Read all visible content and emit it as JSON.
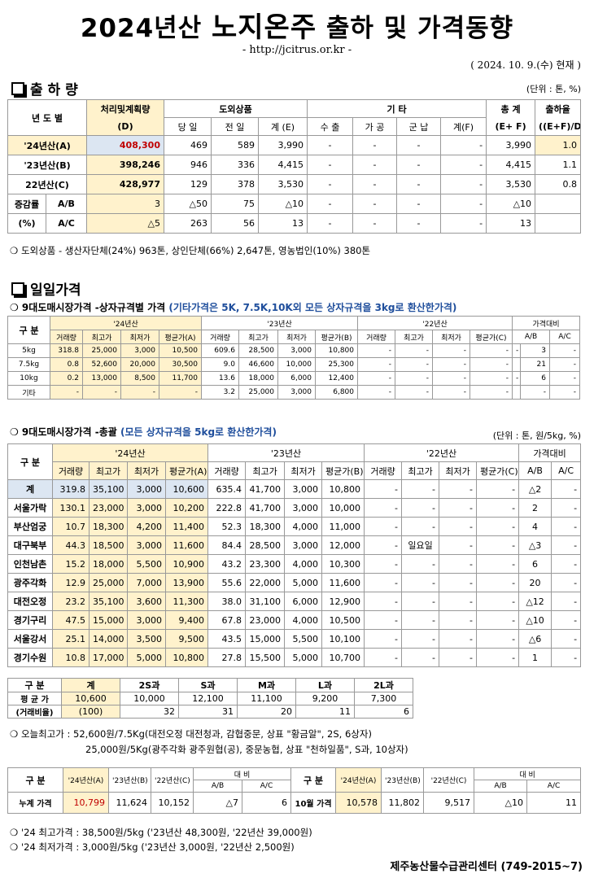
{
  "header": {
    "title_a": "2024년산",
    "title_b": "노지온주",
    "title_c": "출하 및 가격동향",
    "url": "- http://jcitrus.or.kr -",
    "date": "( 2024. 10. 9.(수) 현재 )"
  },
  "ship": {
    "title": "출 하 량",
    "unit": "(단위 : 톤, %)",
    "h": {
      "year": "년 도 별",
      "plan": "처리및계획량",
      "planD": "(D)",
      "domestic": "도외상품",
      "day": "당 일",
      "prev": "전 일",
      "sumE": "계 (E)",
      "etc": "기 타",
      "export": "수 출",
      "proc": "가 공",
      "army": "군 납",
      "sumF": "계(F)",
      "total": "총 계",
      "totalEF": "(E+ F)",
      "rate": "출하율",
      "rateF": "((E+F)/D)"
    },
    "rows": [
      {
        "y": "'24년산(A)",
        "d": "408,300",
        "day": "469",
        "prev": "589",
        "e": "3,990",
        "ex": "-",
        "pr": "-",
        "ar": "-",
        "f": "-",
        "t": "3,990",
        "r": "1.0"
      },
      {
        "y": "'23년산(B)",
        "d": "398,246",
        "day": "946",
        "prev": "336",
        "e": "4,415",
        "ex": "-",
        "pr": "-",
        "ar": "-",
        "f": "-",
        "t": "4,415",
        "r": "1.1"
      },
      {
        "y": "22년산(C)",
        "d": "428,977",
        "day": "129",
        "prev": "378",
        "e": "3,530",
        "ex": "-",
        "pr": "-",
        "ar": "-",
        "f": "-",
        "t": "3,530",
        "r": "0.8"
      }
    ],
    "diff_label": "증감률",
    "pct_label": "(%)",
    "diff": [
      {
        "k": "A/B",
        "d": "3",
        "day": "△50",
        "prev": "75",
        "e": "△10",
        "ex": "-",
        "pr": "-",
        "ar": "-",
        "f": "-",
        "t": "△10",
        "r": ""
      },
      {
        "k": "A/C",
        "d": "△5",
        "day": "263",
        "prev": "56",
        "e": "13",
        "ex": "-",
        "pr": "-",
        "ar": "-",
        "f": "-",
        "t": "13",
        "r": ""
      }
    ],
    "note": "❍ 도외상품 - 생산자단체(24%) 963톤, 상인단체(66%) 2,647톤, 영농법인(10%) 380톤"
  },
  "daily": {
    "title": "일일가격",
    "sub1": "❍ 9대도매시장가격 -상자규격별 가격",
    "sub1b": "(기타가격은 5K, 7.5K,10K외 모든 상자규격을 3kg로 환산한가격)",
    "cols": {
      "gubun": "구 분",
      "y24": "'24년산",
      "y23": "'23년산",
      "y22": "'22년산",
      "cmp": "가격대비",
      "vol": "거래량",
      "max": "최고가",
      "min": "최저가",
      "avgA": "평균가(A)",
      "avgB": "평균가(B)",
      "avgC": "평균가(C)",
      "ab": "A/B",
      "ac": "A/C"
    },
    "spec": [
      {
        "k": "5kg",
        "a": [
          "318.8",
          "25,000",
          "3,000",
          "10,500"
        ],
        "b": [
          "609.6",
          "28,500",
          "3,000",
          "10,800"
        ],
        "c": [
          "-",
          "-",
          "-",
          "-"
        ],
        "x": [
          "-",
          "3",
          "-"
        ]
      },
      {
        "k": "7.5kg",
        "a": [
          "0.8",
          "52,600",
          "20,000",
          "30,500"
        ],
        "b": [
          "9.0",
          "46,600",
          "10,000",
          "25,300"
        ],
        "c": [
          "-",
          "-",
          "-",
          "-"
        ],
        "x": [
          "",
          "21",
          "-"
        ]
      },
      {
        "k": "10kg",
        "a": [
          "0.2",
          "13,000",
          "8,500",
          "11,700"
        ],
        "b": [
          "13.6",
          "18,000",
          "6,000",
          "12,400"
        ],
        "c": [
          "-",
          "-",
          "-",
          "-"
        ],
        "x": [
          "-",
          "6",
          "-"
        ]
      },
      {
        "k": "기타",
        "a": [
          "-",
          "-",
          "-",
          "-"
        ],
        "b": [
          "3.2",
          "25,000",
          "3,000",
          "6,800"
        ],
        "c": [
          "-",
          "-",
          "-",
          "-"
        ],
        "x": [
          "",
          "-",
          "-"
        ]
      }
    ],
    "sub2": "❍ 9대도매시장가격 -총괄",
    "sub2b": "(모든 상자규격을 5kg로 환산한가격)",
    "unit2": "(단위 : 톤, 원/5kg, %)",
    "markets": [
      {
        "k": "계",
        "a": [
          "319.8",
          "35,100",
          "3,000",
          "10,600"
        ],
        "b": [
          "635.4",
          "41,700",
          "3,000",
          "10,800"
        ],
        "c": [
          "-",
          "-",
          "-",
          "-"
        ],
        "x": [
          "△2",
          "-"
        ]
      },
      {
        "k": "서울가락",
        "a": [
          "130.1",
          "23,000",
          "3,000",
          "10,200"
        ],
        "b": [
          "222.8",
          "41,700",
          "3,000",
          "10,000"
        ],
        "c": [
          "-",
          "-",
          "-",
          "-"
        ],
        "x": [
          "2",
          "-"
        ]
      },
      {
        "k": "부산엄궁",
        "a": [
          "10.7",
          "18,300",
          "4,200",
          "11,400"
        ],
        "b": [
          "52.3",
          "18,300",
          "4,000",
          "11,000"
        ],
        "c": [
          "-",
          "-",
          "-",
          "-"
        ],
        "x": [
          "4",
          "-"
        ]
      },
      {
        "k": "대구북부",
        "a": [
          "44.3",
          "18,500",
          "3,000",
          "11,600"
        ],
        "b": [
          "84.4",
          "28,500",
          "3,000",
          "12,000"
        ],
        "c": [
          "-",
          "일요일",
          "-",
          "-"
        ],
        "x": [
          "△3",
          "-"
        ]
      },
      {
        "k": "인천남촌",
        "a": [
          "15.2",
          "18,000",
          "5,500",
          "10,900"
        ],
        "b": [
          "43.2",
          "23,300",
          "4,000",
          "10,300"
        ],
        "c": [
          "-",
          "-",
          "-",
          "-"
        ],
        "x": [
          "6",
          "-"
        ]
      },
      {
        "k": "광주각화",
        "a": [
          "12.9",
          "25,000",
          "7,000",
          "13,900"
        ],
        "b": [
          "55.6",
          "22,000",
          "5,000",
          "11,600"
        ],
        "c": [
          "-",
          "-",
          "-",
          "-"
        ],
        "x": [
          "20",
          "-"
        ]
      },
      {
        "k": "대전오정",
        "a": [
          "23.2",
          "35,100",
          "3,600",
          "11,300"
        ],
        "b": [
          "38.0",
          "31,100",
          "6,000",
          "12,900"
        ],
        "c": [
          "-",
          "-",
          "-",
          "-"
        ],
        "x": [
          "△12",
          "-"
        ]
      },
      {
        "k": "경기구리",
        "a": [
          "47.5",
          "15,000",
          "3,000",
          "9,400"
        ],
        "b": [
          "67.8",
          "23,000",
          "4,000",
          "10,500"
        ],
        "c": [
          "-",
          "-",
          "-",
          "-"
        ],
        "x": [
          "△10",
          "-"
        ]
      },
      {
        "k": "서울강서",
        "a": [
          "25.1",
          "14,000",
          "3,500",
          "9,500"
        ],
        "b": [
          "43.5",
          "15,000",
          "5,500",
          "10,100"
        ],
        "c": [
          "-",
          "-",
          "-",
          "-"
        ],
        "x": [
          "△6",
          "-"
        ]
      },
      {
        "k": "경기수원",
        "a": [
          "10.8",
          "17,000",
          "5,000",
          "10,800"
        ],
        "b": [
          "27.8",
          "15,500",
          "5,000",
          "10,700"
        ],
        "c": [
          "-",
          "-",
          "-",
          "-"
        ],
        "x": [
          "1",
          "-"
        ]
      }
    ],
    "size": {
      "h": [
        "구 분",
        "계",
        "2S과",
        "S과",
        "M과",
        "L과",
        "2L과"
      ],
      "avg_label": "평 균 가",
      "avg": [
        "10,600",
        "10,000",
        "12,100",
        "11,100",
        "9,200",
        "7,300"
      ],
      "ratio_label": "(거래비율)",
      "ratio": [
        "(100)",
        "32",
        "31",
        "20",
        "11",
        "6"
      ]
    },
    "note1": "❍ 오늘최고가 : 52,600원/7.5Kg(대전오정 대전청과, 감협중문, 상표 \"황금알\", 2S, 6상자)",
    "note2": "25,000원/5Kg(광주각화 광주원협(공), 중문농협, 상표 \"천하일품\", S과, 10상자)",
    "cum": {
      "gubun": "구 분",
      "y24": "'24년산(A)",
      "y23": "'23년산(B)",
      "y22": "'22년산(C)",
      "cmp": "대 비",
      "ab": "A/B",
      "ac": "A/C",
      "row1": "누계 가격",
      "v1": [
        "10,799",
        "11,624",
        "10,152",
        "△7",
        "6"
      ],
      "row2": "10월 가격",
      "v2": [
        "10,578",
        "11,802",
        "9,517",
        "△10",
        "11"
      ]
    },
    "note3": "❍ '24 최고가격 : 38,500원/5kg ('23년산 48,300원, '22년산 39,000원)",
    "note4": "❍ '24 최저가격 :   3,000원/5kg ('23년산  3,000원, '22년산  2,500원)"
  },
  "footer": "제주농산물수급관리센터 (749-2015~7)"
}
